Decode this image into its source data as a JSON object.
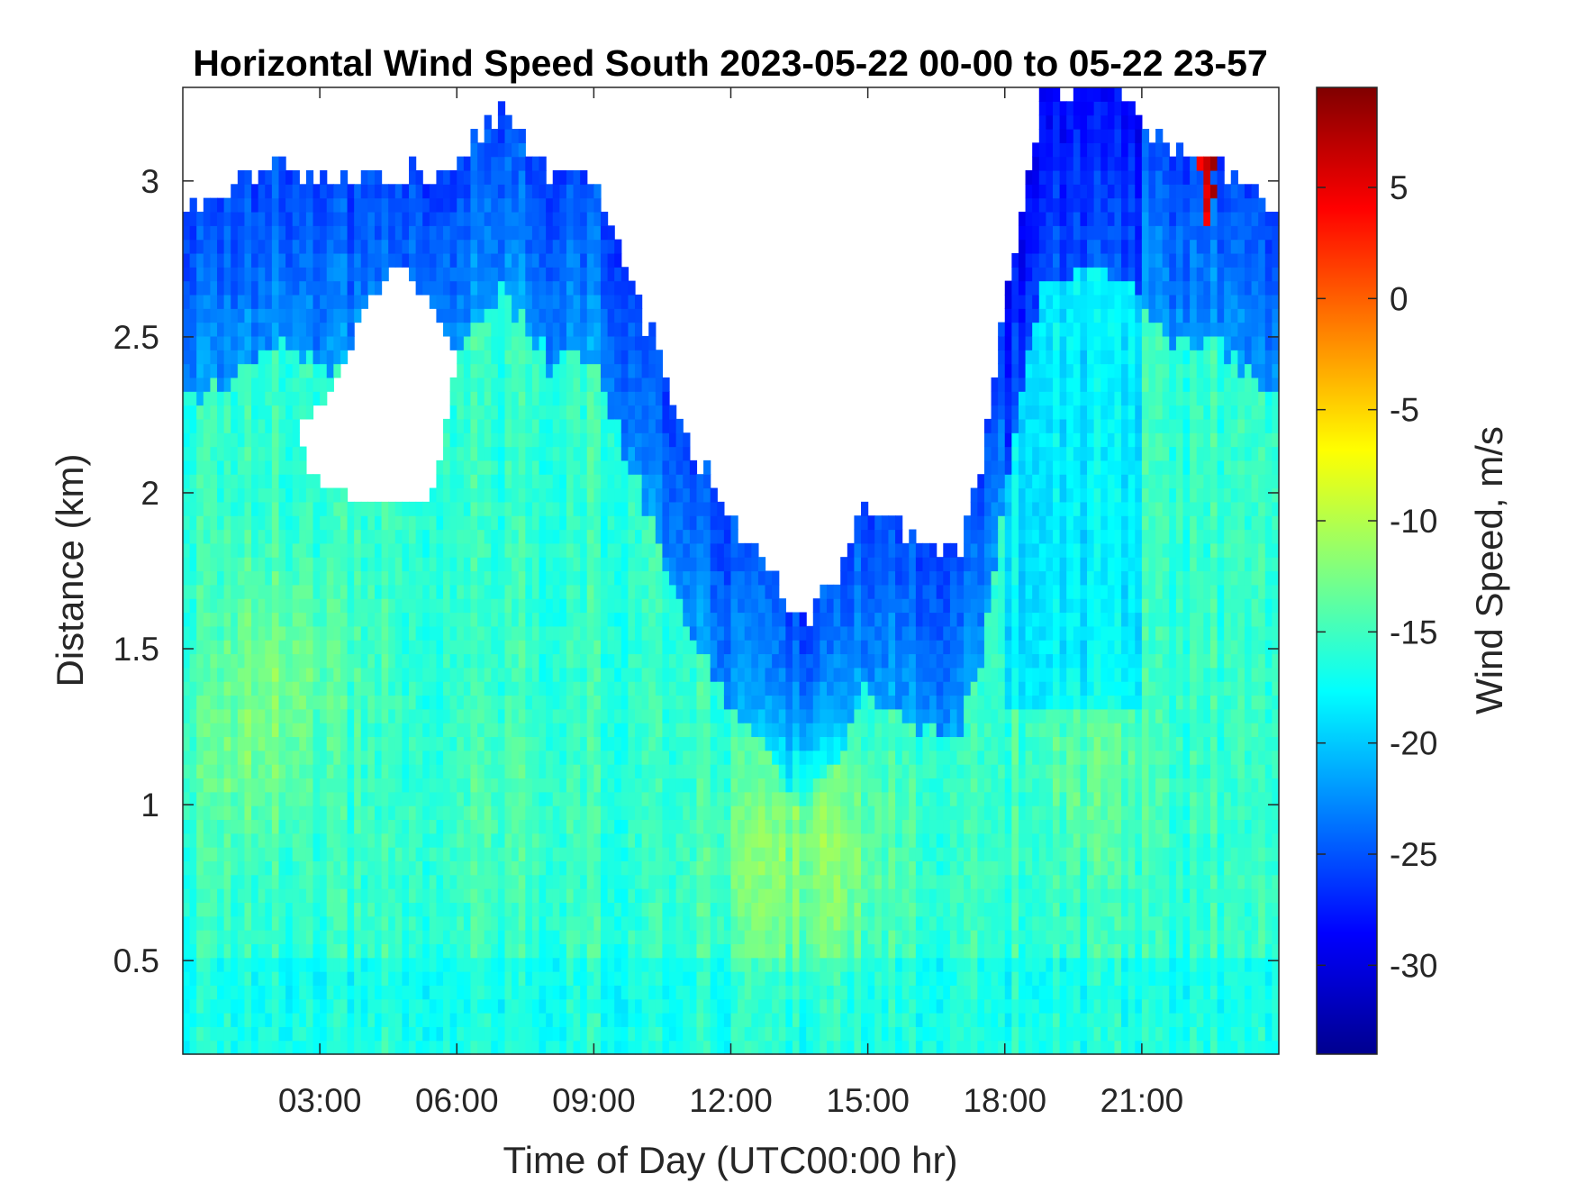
{
  "chart_data": {
    "type": "heatmap",
    "title": "Horizontal Wind Speed South 2023-05-22 00-00 to 05-22 23-57",
    "xlabel": "Time of Day (UTC00:00 hr)",
    "ylabel": "Distance (km)",
    "colorbar_label": "Wind Speed, m/s",
    "xlim_hours": [
      0,
      24
    ],
    "ylim_km": [
      0.2,
      3.3
    ],
    "clim": [
      -34,
      9.5
    ],
    "colormap": "jet",
    "x_ticks": [
      {
        "value": 3,
        "label": "03:00"
      },
      {
        "value": 6,
        "label": "06:00"
      },
      {
        "value": 9,
        "label": "09:00"
      },
      {
        "value": 12,
        "label": "12:00"
      },
      {
        "value": 15,
        "label": "15:00"
      },
      {
        "value": 18,
        "label": "18:00"
      },
      {
        "value": 21,
        "label": "21:00"
      }
    ],
    "y_ticks": [
      {
        "value": 0.5,
        "label": "0.5"
      },
      {
        "value": 1,
        "label": "1"
      },
      {
        "value": 1.5,
        "label": "1.5"
      },
      {
        "value": 2,
        "label": "2"
      },
      {
        "value": 2.5,
        "label": "2.5"
      },
      {
        "value": 3,
        "label": "3"
      }
    ],
    "colorbar_ticks": [
      {
        "value": 5,
        "label": "5"
      },
      {
        "value": 0,
        "label": "0"
      },
      {
        "value": -5,
        "label": "-5"
      },
      {
        "value": -10,
        "label": "-10"
      },
      {
        "value": -15,
        "label": "-15"
      },
      {
        "value": -20,
        "label": "-20"
      },
      {
        "value": -25,
        "label": "-25"
      },
      {
        "value": -30,
        "label": "-30"
      }
    ],
    "data_top_km": [
      [
        0.0,
        2.88
      ],
      [
        1.0,
        2.98
      ],
      [
        2.0,
        3.08
      ],
      [
        3.0,
        3.0
      ],
      [
        4.0,
        3.02
      ],
      [
        5.0,
        3.02
      ],
      [
        6.0,
        3.05
      ],
      [
        7.0,
        3.25
      ],
      [
        8.0,
        3.02
      ],
      [
        9.0,
        3.03
      ],
      [
        10.0,
        2.6
      ],
      [
        11.0,
        2.2
      ],
      [
        12.0,
        1.92
      ],
      [
        13.0,
        1.72
      ],
      [
        13.6,
        1.58
      ],
      [
        14.5,
        1.8
      ],
      [
        15.0,
        1.98
      ],
      [
        16.0,
        1.85
      ],
      [
        17.0,
        1.82
      ],
      [
        17.5,
        2.1
      ],
      [
        18.0,
        2.6
      ],
      [
        18.8,
        3.25
      ],
      [
        19.5,
        3.3
      ],
      [
        20.5,
        3.3
      ],
      [
        21.5,
        3.1
      ],
      [
        22.5,
        3.1
      ],
      [
        24.0,
        2.9
      ]
    ],
    "gap_regions": [
      {
        "label": "gap-morning",
        "outline": [
          [
            2.5,
            2.2
          ],
          [
            3.2,
            2.3
          ],
          [
            4.0,
            2.6
          ],
          [
            4.8,
            2.75
          ],
          [
            6.0,
            2.45
          ],
          [
            5.5,
            2.0
          ],
          [
            4.3,
            1.95
          ],
          [
            3.5,
            2.0
          ],
          [
            2.8,
            2.05
          ]
        ]
      }
    ],
    "warm_spots": [
      {
        "time": 1.5,
        "distance_km": 1.15,
        "speed": -12
      },
      {
        "time": 2.1,
        "distance_km": 1.45,
        "speed": -11.5
      },
      {
        "time": 14.0,
        "distance_km": 0.85,
        "speed": -11
      },
      {
        "time": 13.0,
        "distance_km": 0.8,
        "speed": -12
      },
      {
        "time": 20.0,
        "distance_km": 1.1,
        "speed": -13
      },
      {
        "time": 7.0,
        "distance_km": 1.0,
        "speed": -14
      }
    ],
    "positive_burst": {
      "time_range": [
        22.15,
        22.7
      ],
      "distance_km": [
        2.85,
        3.2
      ],
      "peak_speed": 8
    }
  }
}
